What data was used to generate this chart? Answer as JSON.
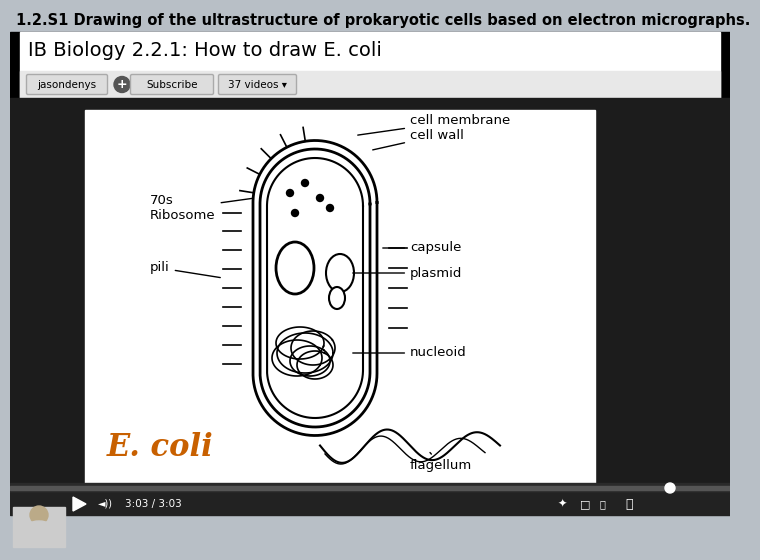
{
  "title_text": "1.2.S1 Drawing of the ultrastructure of prokaryotic cells based on electron micrographs.",
  "title_bg": "#b8bfc6",
  "title_color": "#000000",
  "title_fontsize": 10.5,
  "video_title": "IB Biology 2.2.1: How to draw E. coli",
  "video_title_fontsize": 14,
  "channel": "jasondenys",
  "subscribe_text": "Subscribe",
  "videos_text": "37 videos",
  "outer_bg": "#1c1c1c",
  "content_bg": "#ffffff",
  "header_bg": "#f1f1f1",
  "ecoli_label": "E. coli",
  "ecoli_label_color": "#c86000",
  "toolbar_bg": "#1c1c1c",
  "progress_bar_color": "#aaaaaa",
  "time_text": "3:03 / 3:03",
  "sub_bar_bg": "#e8e8e8",
  "btn_bg": "#dddddd",
  "btn_border": "#aaaaaa"
}
